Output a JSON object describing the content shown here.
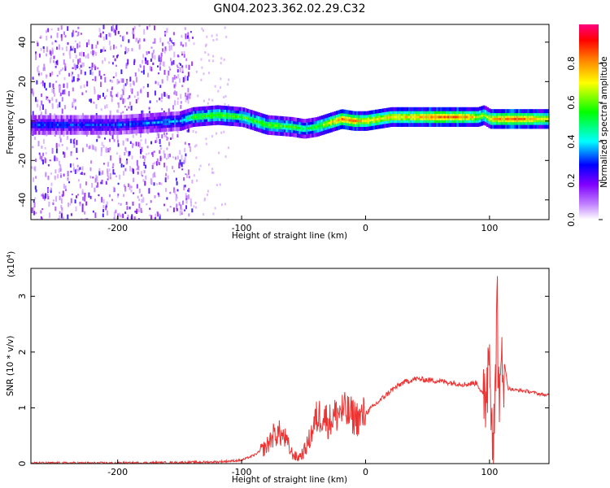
{
  "title": "GN04.2023.362.02.29.C32",
  "chart_data": [
    {
      "type": "heatmap",
      "xlabel": "Height of straight line (km)",
      "ylabel": "Frequency (Hz)",
      "xlim": [
        -270,
        148
      ],
      "ylim": [
        -50,
        49
      ],
      "xticks": [
        -200,
        -100,
        0,
        100
      ],
      "yticks": [
        -40,
        -20,
        0,
        20,
        40
      ],
      "colorbar": {
        "label": "Normalized spectral amplitude",
        "range": [
          0,
          1
        ],
        "ticks": [
          0.0,
          0.2,
          0.4,
          0.6,
          0.8
        ],
        "colors": [
          "#ffffff",
          "#c080ff",
          "#8000ff",
          "#0000ff",
          "#00ffff",
          "#00ff00",
          "#ffff00",
          "#ff8000",
          "#ff0000",
          "#ff0080"
        ]
      },
      "ridge": {
        "x": [
          -270,
          -200,
          -150,
          -140,
          -120,
          -100,
          -80,
          -60,
          -50,
          -40,
          -30,
          -20,
          -10,
          0,
          20,
          40,
          60,
          80,
          90,
          95,
          100,
          110,
          120,
          148
        ],
        "frequency": [
          -2,
          -2,
          0,
          2,
          3,
          2,
          -2,
          -3,
          -4,
          -3,
          -1,
          1,
          0,
          0,
          2,
          2,
          2,
          2,
          2,
          3,
          1,
          1,
          1,
          1
        ],
        "amplitude": [
          0.3,
          0.3,
          0.35,
          0.55,
          0.6,
          0.55,
          0.6,
          0.55,
          0.5,
          0.55,
          0.7,
          0.8,
          0.8,
          0.75,
          0.7,
          0.75,
          0.85,
          0.8,
          0.7,
          0.6,
          0.75,
          0.8,
          0.85,
          0.7
        ]
      },
      "scattered_noise_extent_x": [
        -270,
        -140
      ]
    },
    {
      "type": "line",
      "xlabel": "Height of straight line (km)",
      "ylabel": "SNR (10 * v/v)",
      "y_multiplier_label": "(x10",
      "y_multiplier_exp": "4",
      "y_multiplier_close": ")",
      "xlim": [
        -270,
        148
      ],
      "ylim": [
        0,
        3.5
      ],
      "xticks": [
        -200,
        -100,
        0,
        100
      ],
      "yticks": [
        0,
        1,
        2,
        3
      ],
      "series": [
        {
          "color": "#ee3333",
          "x": [
            -270,
            -200,
            -150,
            -120,
            -100,
            -90,
            -80,
            -75,
            -70,
            -65,
            -60,
            -55,
            -50,
            -45,
            -40,
            -35,
            -30,
            -25,
            -20,
            -15,
            -10,
            -5,
            0,
            10,
            20,
            30,
            40,
            50,
            60,
            70,
            80,
            90,
            95,
            98,
            100,
            102,
            104,
            106,
            108,
            110,
            115,
            120,
            130,
            140,
            148
          ],
          "y": [
            0.01,
            0.01,
            0.02,
            0.03,
            0.06,
            0.15,
            0.3,
            0.5,
            0.55,
            0.45,
            0.2,
            0.1,
            0.2,
            0.45,
            0.8,
            0.9,
            0.75,
            0.85,
            0.95,
            0.9,
            0.85,
            0.8,
            0.9,
            1.1,
            1.3,
            1.45,
            1.52,
            1.5,
            1.48,
            1.45,
            1.42,
            1.45,
            1.2,
            1.5,
            2.2,
            1.0,
            0.3,
            3.3,
            0.5,
            2.1,
            1.35,
            1.32,
            1.3,
            1.25,
            1.22
          ]
        }
      ]
    }
  ]
}
